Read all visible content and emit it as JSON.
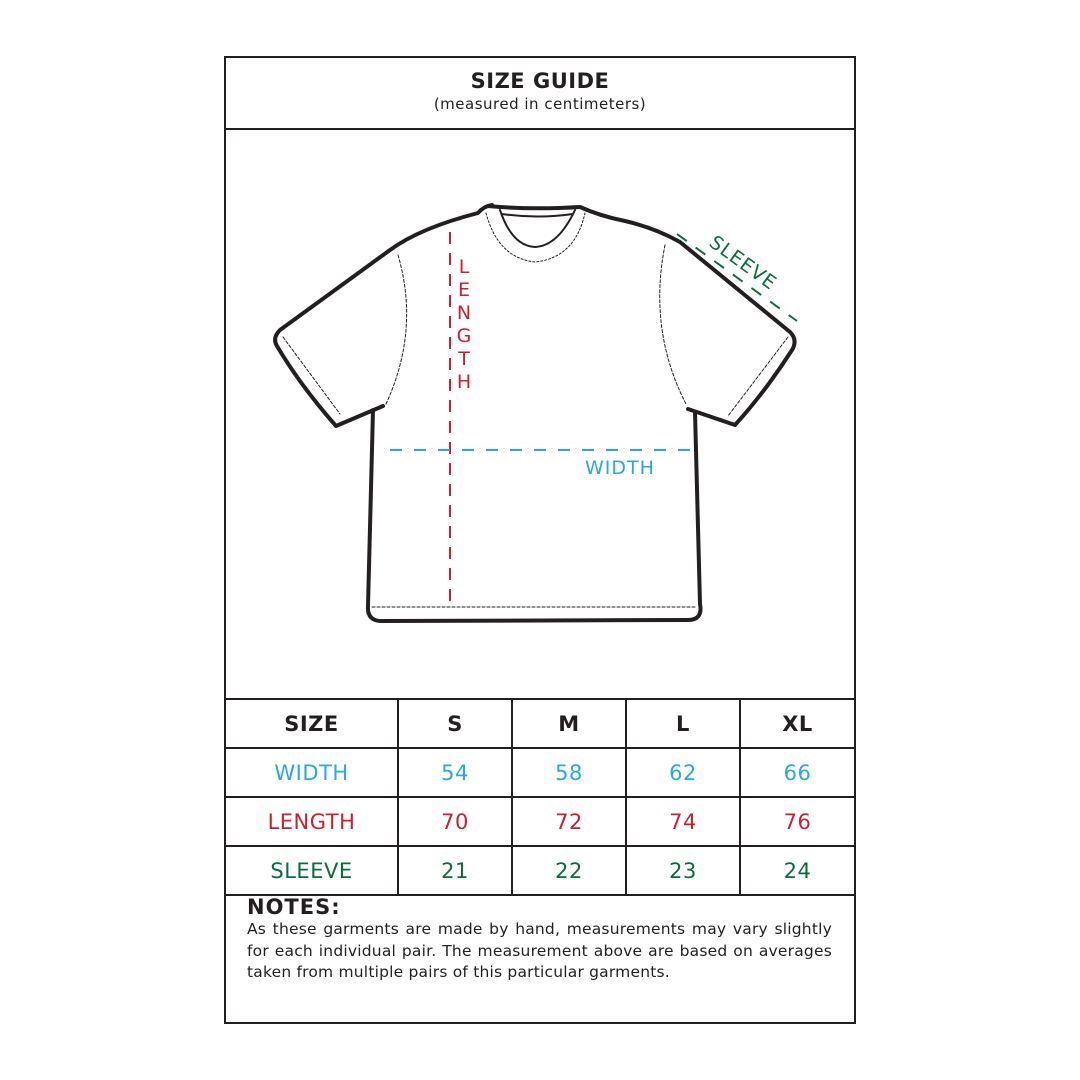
{
  "header": {
    "title": "SIZE GUIDE",
    "subtitle": "(measured in centimeters)"
  },
  "diagram": {
    "length_label": "LENGTH",
    "width_label": "WIDTH",
    "sleeve_label": "SLEEVE"
  },
  "colors": {
    "width": "#29a8e0",
    "length": "#c8202f",
    "sleeve": "#0b6b3a",
    "outline": "#231f20"
  },
  "table": {
    "headers": [
      "SIZE",
      "S",
      "M",
      "L",
      "XL"
    ],
    "rows": [
      {
        "label": "WIDTH",
        "values": [
          "54",
          "58",
          "62",
          "66"
        ]
      },
      {
        "label": "LENGTH",
        "values": [
          "70",
          "72",
          "74",
          "76"
        ]
      },
      {
        "label": "SLEEVE",
        "values": [
          "21",
          "22",
          "23",
          "24"
        ]
      }
    ]
  },
  "notes": {
    "title": "NOTES:",
    "text": "As these garments are made by hand, measurements may vary slightly for each individual pair. The measurement above are based on averages taken from multiple pairs of this particular garments."
  }
}
